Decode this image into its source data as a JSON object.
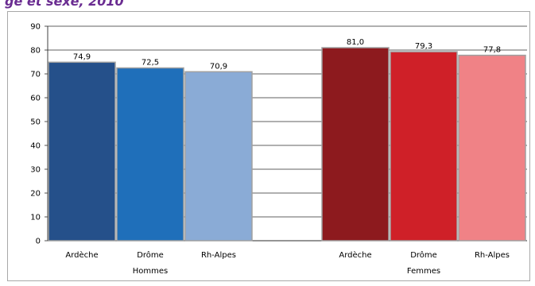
{
  "header_fragment": "ge et sexe, 2010",
  "chart_data": {
    "type": "bar",
    "ylim": [
      0,
      90
    ],
    "yticks": [
      "0",
      "10",
      "20",
      "30",
      "40",
      "50",
      "60",
      "70",
      "80",
      "90"
    ],
    "groups": [
      {
        "name": "Hommes",
        "bars": [
          {
            "label": "Ardèche",
            "value": 74.9,
            "text": "74,9",
            "color": "#25508a"
          },
          {
            "label": "Drôme",
            "value": 72.5,
            "text": "72,5",
            "color": "#1f6fba"
          },
          {
            "label": "Rh-Alpes",
            "value": 70.9,
            "text": "70,9",
            "color": "#8aabd6"
          }
        ]
      },
      {
        "name": "Femmes",
        "bars": [
          {
            "label": "Ardèche",
            "value": 81.0,
            "text": "81,0",
            "color": "#8d1a1e"
          },
          {
            "label": "Drôme",
            "value": 79.3,
            "text": "79,3",
            "color": "#cf2028"
          },
          {
            "label": "Rh-Alpes",
            "value": 77.8,
            "text": "77,8",
            "color": "#f08286"
          }
        ]
      }
    ],
    "grid": true,
    "legend": "none"
  }
}
